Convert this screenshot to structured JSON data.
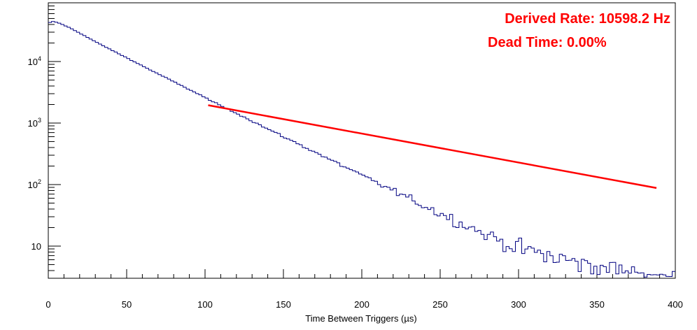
{
  "chart_data": {
    "type": "line",
    "title": "",
    "xlabel": "Time Between Triggers (µs)",
    "ylabel": "",
    "xlim": [
      0,
      400
    ],
    "ylim": [
      3,
      90000
    ],
    "y_scale": "log",
    "grid": false,
    "legend": "none",
    "x_ticks": [
      "0",
      "50",
      "100",
      "150",
      "200",
      "250",
      "300",
      "350",
      "400"
    ],
    "y_ticks": [
      {
        "value": 10,
        "base": "10",
        "exp": ""
      },
      {
        "value": 100,
        "base": "10",
        "exp": "2"
      },
      {
        "value": 1000,
        "base": "10",
        "exp": "3"
      },
      {
        "value": 10000,
        "base": "10",
        "exp": "4"
      }
    ],
    "annotations": [
      "Derived Rate: 10598.2 Hz",
      "Dead Time: 0.00%"
    ],
    "colors": {
      "histogram": "#000080",
      "fit": "#ff0000",
      "annotation": "#ff0000",
      "axis": "#000000"
    },
    "series": [
      {
        "kind": "histogram",
        "bin_width": 2,
        "x": [
          0,
          2,
          4,
          6,
          8,
          10,
          15,
          20,
          30,
          40,
          50,
          60,
          70,
          80,
          90,
          100,
          110,
          120,
          130,
          140,
          150,
          160,
          170,
          180,
          190,
          200,
          210,
          220,
          230,
          240,
          250,
          260,
          270,
          280,
          290,
          300,
          310,
          320,
          330,
          340,
          350,
          360,
          370,
          380,
          390,
          396,
          400
        ],
        "values": [
          41000,
          45000,
          44000,
          43000,
          41000,
          39000,
          34000,
          29000,
          21000,
          15500,
          11500,
          8500,
          6300,
          4700,
          3500,
          2600,
          1900,
          1450,
          1080,
          800,
          600,
          450,
          340,
          250,
          190,
          140,
          105,
          80,
          60,
          45,
          34,
          26,
          20,
          15,
          12,
          9.5,
          8,
          6.8,
          6,
          5.2,
          4.6,
          4.2,
          3.8,
          3.5,
          3.3,
          3.2,
          3.2
        ]
      },
      {
        "kind": "fit",
        "x": [
          102,
          388
        ],
        "values": [
          1950,
          88
        ]
      }
    ]
  }
}
